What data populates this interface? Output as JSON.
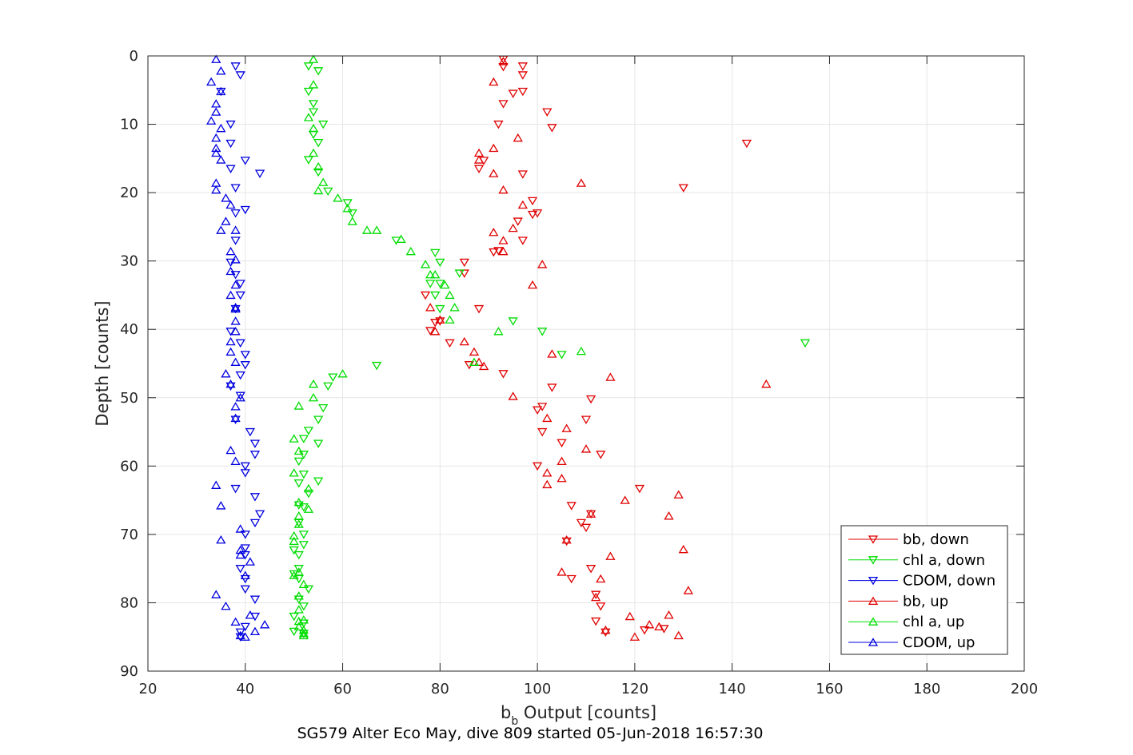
{
  "chart_data": {
    "type": "scatter",
    "xlabel": "b",
    "xlabel_sub": "b",
    "xlabel_rest": " Output [counts]",
    "ylabel": "Depth [counts]",
    "caption": "SG579 Alter Eco May, dive 809 started 05-Jun-2018 16:57:30",
    "xlim": [
      20,
      200
    ],
    "ylim": [
      0,
      90
    ],
    "y_reversed": true,
    "xticks": [
      "20",
      "40",
      "60",
      "80",
      "100",
      "120",
      "140",
      "160",
      "180",
      "200"
    ],
    "yticks": [
      "0",
      "10",
      "20",
      "30",
      "40",
      "50",
      "60",
      "70",
      "80",
      "90"
    ],
    "grid": true,
    "legend_position": "bottom-right",
    "series": [
      {
        "name": "bb, down",
        "color": "#e00000",
        "marker": "triangle-down",
        "points": [
          [
            93,
            0.5
          ],
          [
            97,
            1.5
          ],
          [
            93,
            1.6
          ],
          [
            97,
            2.8
          ],
          [
            95,
            5.5
          ],
          [
            97,
            5.2
          ],
          [
            93,
            7
          ],
          [
            102,
            8.2
          ],
          [
            92,
            10
          ],
          [
            103,
            10.5
          ],
          [
            143,
            12.8
          ],
          [
            89,
            15.3
          ],
          [
            88,
            16.5
          ],
          [
            97,
            17.3
          ],
          [
            130,
            19.3
          ],
          [
            99,
            21.2
          ],
          [
            100,
            23
          ],
          [
            99,
            23.2
          ],
          [
            96,
            24.2
          ],
          [
            97,
            27
          ],
          [
            92,
            28.5
          ],
          [
            91,
            28.7
          ],
          [
            85,
            30.2
          ],
          [
            85,
            31.8
          ],
          [
            77,
            35
          ],
          [
            88,
            37
          ],
          [
            80,
            38.8
          ],
          [
            79,
            39
          ],
          [
            78,
            40.2
          ],
          [
            82,
            42
          ],
          [
            86,
            45.2
          ],
          [
            93,
            46.5
          ],
          [
            103,
            48.5
          ],
          [
            111,
            50.2
          ],
          [
            101,
            51.3
          ],
          [
            100,
            51.8
          ],
          [
            110,
            53.2
          ],
          [
            101,
            55
          ],
          [
            105,
            56.6
          ],
          [
            113,
            58.3
          ],
          [
            100,
            60
          ],
          [
            121,
            63.3
          ],
          [
            107,
            65.8
          ],
          [
            109,
            68.3
          ],
          [
            111,
            67
          ],
          [
            110,
            69
          ],
          [
            106,
            71
          ],
          [
            111,
            75
          ],
          [
            107,
            76.5
          ],
          [
            112,
            78.8
          ],
          [
            112,
            82.7
          ],
          [
            122,
            84
          ],
          [
            114,
            84.3
          ],
          [
            126,
            83.8
          ],
          [
            113,
            80.5
          ]
        ]
      },
      {
        "name": "chl a, down",
        "color": "#00dd00",
        "marker": "triangle-down",
        "points": [
          [
            53,
            1.5
          ],
          [
            55,
            2.2
          ],
          [
            53,
            5.2
          ],
          [
            54,
            7
          ],
          [
            54,
            8.2
          ],
          [
            56,
            10
          ],
          [
            54,
            11.5
          ],
          [
            55,
            12.7
          ],
          [
            53,
            15.2
          ],
          [
            55,
            17
          ],
          [
            57,
            19.8
          ],
          [
            61,
            21.5
          ],
          [
            62,
            23
          ],
          [
            71,
            27
          ],
          [
            79,
            28.8
          ],
          [
            80,
            30.2
          ],
          [
            78,
            33.3
          ],
          [
            80,
            33.3
          ],
          [
            84,
            31.8
          ],
          [
            80,
            37
          ],
          [
            79,
            35
          ],
          [
            101,
            40.3
          ],
          [
            95,
            38.8
          ],
          [
            105,
            43.7
          ],
          [
            155,
            42
          ],
          [
            67,
            45.3
          ],
          [
            58,
            47
          ],
          [
            57,
            48.3
          ],
          [
            56,
            51.5
          ],
          [
            55,
            53.2
          ],
          [
            53,
            54.8
          ],
          [
            52,
            56
          ],
          [
            55,
            56.7
          ],
          [
            51,
            59.3
          ],
          [
            52,
            58.3
          ],
          [
            55,
            62.2
          ],
          [
            51,
            62.5
          ],
          [
            52,
            61.2
          ],
          [
            53,
            64
          ],
          [
            52,
            66
          ],
          [
            51,
            65.7
          ],
          [
            51,
            68.3
          ],
          [
            52,
            70
          ],
          [
            52,
            71.5
          ],
          [
            50,
            72.3
          ],
          [
            51,
            73
          ],
          [
            51,
            75
          ],
          [
            50,
            75.8
          ],
          [
            51,
            76.5
          ],
          [
            53,
            78
          ],
          [
            51,
            79.5
          ],
          [
            52,
            80.5
          ],
          [
            50,
            82
          ],
          [
            52,
            83
          ],
          [
            50,
            84.2
          ],
          [
            52,
            84.5
          ]
        ]
      },
      {
        "name": "CDOM, down",
        "color": "#0000e0",
        "marker": "triangle-down",
        "points": [
          [
            38,
            1.5
          ],
          [
            39,
            2.8
          ],
          [
            35,
            5.2
          ],
          [
            37,
            10
          ],
          [
            37,
            12.8
          ],
          [
            40,
            15.3
          ],
          [
            37,
            16.5
          ],
          [
            43,
            17.2
          ],
          [
            38,
            19.3
          ],
          [
            40,
            22.5
          ],
          [
            38,
            23
          ],
          [
            38,
            27
          ],
          [
            37,
            30.2
          ],
          [
            38,
            32
          ],
          [
            39,
            33.3
          ],
          [
            39,
            35
          ],
          [
            38,
            37
          ],
          [
            37,
            40.3
          ],
          [
            39,
            42
          ],
          [
            40,
            43.7
          ],
          [
            40,
            45.2
          ],
          [
            39,
            46.7
          ],
          [
            37,
            48.3
          ],
          [
            39,
            49.7
          ],
          [
            38,
            53.2
          ],
          [
            41,
            55
          ],
          [
            42,
            56.7
          ],
          [
            42,
            58.3
          ],
          [
            40,
            60
          ],
          [
            40,
            61
          ],
          [
            38,
            63.3
          ],
          [
            42,
            64.5
          ],
          [
            43,
            67
          ],
          [
            42,
            68.3
          ],
          [
            40,
            70
          ],
          [
            40,
            72
          ],
          [
            40,
            73
          ],
          [
            39,
            75
          ],
          [
            40,
            76.5
          ],
          [
            40,
            78
          ],
          [
            42,
            79.5
          ],
          [
            42,
            82
          ],
          [
            40,
            83.5
          ],
          [
            39,
            84.3
          ],
          [
            39,
            85
          ]
        ]
      },
      {
        "name": "bb, up",
        "color": "#e00000",
        "marker": "triangle-up",
        "points": [
          [
            93,
            0.8
          ],
          [
            91,
            3.8
          ],
          [
            96,
            12
          ],
          [
            91,
            13.5
          ],
          [
            88,
            14.2
          ],
          [
            88,
            15.2
          ],
          [
            91,
            17.2
          ],
          [
            109,
            18.6
          ],
          [
            93,
            19.6
          ],
          [
            97,
            21.8
          ],
          [
            95,
            25.2
          ],
          [
            91,
            25.8
          ],
          [
            93,
            27
          ],
          [
            93,
            28.6
          ],
          [
            101,
            30.5
          ],
          [
            99,
            33.5
          ],
          [
            78,
            36.8
          ],
          [
            80,
            38.6
          ],
          [
            79,
            40.3
          ],
          [
            85,
            41.8
          ],
          [
            87,
            43.3
          ],
          [
            88,
            44.8
          ],
          [
            89,
            45.4
          ],
          [
            103,
            43.6
          ],
          [
            147,
            48
          ],
          [
            115,
            47
          ],
          [
            95,
            49.8
          ],
          [
            102,
            53
          ],
          [
            106,
            54.5
          ],
          [
            110,
            57.5
          ],
          [
            102,
            61
          ],
          [
            105,
            59.3
          ],
          [
            105,
            61.8
          ],
          [
            102,
            62.7
          ],
          [
            118,
            65
          ],
          [
            129,
            64.2
          ],
          [
            111,
            67
          ],
          [
            127,
            67.3
          ],
          [
            106,
            70.8
          ],
          [
            115,
            73.2
          ],
          [
            130,
            72.2
          ],
          [
            105,
            75.5
          ],
          [
            113,
            76.5
          ],
          [
            131,
            78.2
          ],
          [
            119,
            82
          ],
          [
            127,
            81.8
          ],
          [
            123,
            83.2
          ],
          [
            125,
            83.5
          ],
          [
            114,
            84
          ],
          [
            120,
            85
          ],
          [
            129,
            84.8
          ],
          [
            112,
            79.2
          ]
        ]
      },
      {
        "name": "chl a, up",
        "color": "#00dd00",
        "marker": "triangle-up",
        "points": [
          [
            54,
            0.5
          ],
          [
            54,
            4.2
          ],
          [
            53,
            9
          ],
          [
            54,
            10.6
          ],
          [
            54,
            14.2
          ],
          [
            55,
            16.2
          ],
          [
            56,
            18.5
          ],
          [
            55,
            19.7
          ],
          [
            59,
            20.8
          ],
          [
            61,
            22.3
          ],
          [
            62,
            24.2
          ],
          [
            65,
            25.5
          ],
          [
            67,
            25.5
          ],
          [
            72,
            26.8
          ],
          [
            74,
            28.6
          ],
          [
            77,
            30.5
          ],
          [
            78,
            32
          ],
          [
            79,
            32
          ],
          [
            81,
            33.5
          ],
          [
            82,
            35
          ],
          [
            83,
            36.8
          ],
          [
            82,
            38.6
          ],
          [
            92,
            40.3
          ],
          [
            109,
            43.2
          ],
          [
            87,
            44.8
          ],
          [
            60,
            46.5
          ],
          [
            54,
            48
          ],
          [
            54,
            50
          ],
          [
            51,
            51.2
          ],
          [
            50,
            56
          ],
          [
            51,
            57.8
          ],
          [
            50,
            61
          ],
          [
            53,
            63.3
          ],
          [
            51,
            65.3
          ],
          [
            53,
            66.3
          ],
          [
            51,
            67.3
          ],
          [
            51,
            68.5
          ],
          [
            50,
            70.2
          ],
          [
            50,
            71
          ],
          [
            51,
            75.5
          ],
          [
            50,
            76
          ],
          [
            52,
            77.3
          ],
          [
            51,
            79
          ],
          [
            51,
            81
          ],
          [
            51,
            82.7
          ],
          [
            52,
            82.5
          ],
          [
            51,
            83.5
          ],
          [
            52,
            84
          ],
          [
            52,
            84.8
          ],
          [
            52,
            84.5
          ]
        ]
      },
      {
        "name": "CDOM, up",
        "color": "#0000e0",
        "marker": "triangle-up",
        "points": [
          [
            34,
            0.5
          ],
          [
            35,
            2.2
          ],
          [
            33,
            3.8
          ],
          [
            35,
            5.2
          ],
          [
            34,
            7
          ],
          [
            34,
            8.2
          ],
          [
            33,
            9.5
          ],
          [
            35,
            10.6
          ],
          [
            34,
            12
          ],
          [
            34,
            13.5
          ],
          [
            34,
            14.2
          ],
          [
            35,
            15.2
          ],
          [
            34,
            18.6
          ],
          [
            34,
            19.6
          ],
          [
            36,
            20.8
          ],
          [
            37,
            21.8
          ],
          [
            36,
            24.2
          ],
          [
            35,
            25.5
          ],
          [
            38,
            25.5
          ],
          [
            37,
            28.6
          ],
          [
            38,
            29.8
          ],
          [
            37,
            31.5
          ],
          [
            38,
            33.5
          ],
          [
            37,
            35
          ],
          [
            38,
            36.8
          ],
          [
            38,
            37
          ],
          [
            38,
            38.8
          ],
          [
            38,
            40.3
          ],
          [
            37,
            41.8
          ],
          [
            37,
            43.3
          ],
          [
            38,
            44.8
          ],
          [
            36,
            46.5
          ],
          [
            37,
            48
          ],
          [
            39,
            50
          ],
          [
            38,
            51.3
          ],
          [
            38,
            53
          ],
          [
            37,
            57.7
          ],
          [
            38,
            59.3
          ],
          [
            34,
            62.8
          ],
          [
            35,
            65.8
          ],
          [
            39,
            69.2
          ],
          [
            35,
            70.8
          ],
          [
            39,
            72.3
          ],
          [
            39,
            73
          ],
          [
            41,
            74
          ],
          [
            40,
            76
          ],
          [
            34,
            78.8
          ],
          [
            36,
            80.5
          ],
          [
            41,
            81.8
          ],
          [
            44,
            83.2
          ],
          [
            38,
            82.8
          ],
          [
            42,
            84.2
          ],
          [
            39,
            84.8
          ],
          [
            40,
            85
          ]
        ]
      }
    ]
  }
}
